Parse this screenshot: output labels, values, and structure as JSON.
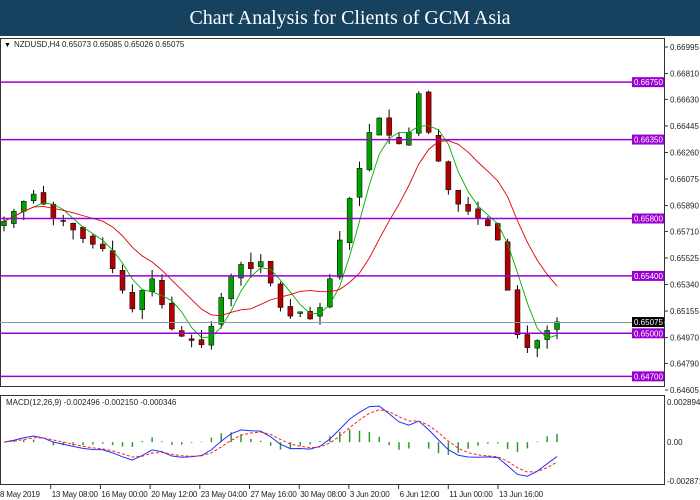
{
  "header": {
    "title": "Chart Analysis for Clients of GCM Asia"
  },
  "chart_data": {
    "type": "candlestick",
    "symbol_info": "NZDUSD,H4  0.65073 0.65085 0.65026 0.65075",
    "closes": [
      0.6578,
      0.6585,
      0.6592,
      0.6597,
      0.659,
      0.658,
      0.6578,
      0.6572,
      0.6566,
      0.6562,
      0.6559,
      0.6545,
      0.653,
      0.6517,
      0.653,
      0.6538,
      0.652,
      0.6503,
      0.6498,
      0.6495,
      0.6492,
      0.6505,
      0.6525,
      0.654,
      0.6548,
      0.6545,
      0.655,
      0.6535,
      0.6518,
      0.6512,
      0.6515,
      0.651,
      0.6518,
      0.6538,
      0.6565,
      0.6594,
      0.6615,
      0.664,
      0.665,
      0.6638,
      0.6632,
      0.664,
      0.6667,
      0.664,
      0.662,
      0.66,
      0.659,
      0.6585,
      0.658,
      0.6575,
      0.6565,
      0.653,
      0.6499,
      0.649,
      0.6495,
      0.6502,
      0.6508
    ],
    "y_ticks": [
      "0.66995",
      "0.66810",
      "0.66630",
      "0.66445",
      "0.66260",
      "0.66075",
      "0.65890",
      "0.65710",
      "0.65525",
      "0.65340",
      "0.65155",
      "0.64970",
      "0.64790",
      "0.64605"
    ],
    "ylim": [
      0.64605,
      0.66995
    ],
    "levels": [
      {
        "value": 0.6675,
        "label": "0.66750"
      },
      {
        "value": 0.6635,
        "label": "0.66350"
      },
      {
        "value": 0.658,
        "label": "0.65800"
      },
      {
        "value": 0.654,
        "label": "0.65400"
      },
      {
        "value": 0.65,
        "label": "0.65000"
      },
      {
        "value": 0.647,
        "label": "0.64700"
      }
    ],
    "current_price": {
      "value": 0.65075,
      "label": "0.65075"
    },
    "x_labels": [
      "8 May 2019",
      "13 May 08:00",
      "16 May 00:00",
      "20 May 12:00",
      "23 May 04:00",
      "27 May 16:00",
      "30 May 08:00",
      "3 Jun 20:00",
      "6 Jun 12:00",
      "11 Jun 00:00",
      "13 Jun 16:00"
    ],
    "macd": {
      "label": "MACD(12,26,9) -0.002496 -0.002150 -0.000346",
      "ticks": [
        "0.002894",
        "0.00",
        "-0.002871"
      ],
      "ylim": [
        -0.002871,
        0.002894
      ]
    },
    "colors": {
      "level": "#9b00d3",
      "up": "#00a000",
      "down": "#b00000",
      "ma_fast": "#00b000",
      "ma_slow": "#e00000",
      "macd": "#2030ff",
      "signal": "#ff2020",
      "hist": "#2e9a2e"
    }
  }
}
